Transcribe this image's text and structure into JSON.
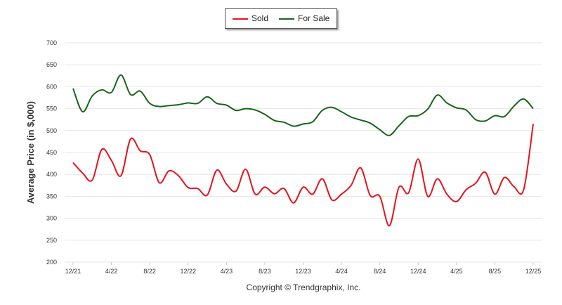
{
  "legend": {
    "sold_label": "Sold",
    "for_sale_label": "For Sale"
  },
  "colors": {
    "sold": "#e4141b",
    "for_sale": "#19661a",
    "grid": "#e6e6e6"
  },
  "caption": "Copyright © Trendgraphix, Inc.",
  "chart_data": {
    "type": "line",
    "title": "",
    "xlabel": "",
    "ylabel": "Average Price (in $,000)",
    "ylim": [
      200,
      700
    ],
    "yticks": [
      200,
      250,
      300,
      350,
      400,
      450,
      500,
      550,
      600,
      650,
      700
    ],
    "grid": true,
    "legend_position": "top-center",
    "x_tick_labels": [
      "12/21",
      "4/22",
      "8/22",
      "12/22",
      "4/23",
      "8/23",
      "12/23",
      "4/24",
      "8/24",
      "12/24",
      "4/25",
      "8/25",
      "12/25"
    ],
    "x_tick_index": [
      0,
      4,
      8,
      12,
      16,
      20,
      24,
      28,
      32,
      36,
      40,
      44,
      48
    ],
    "months": [
      "12/21",
      "1/22",
      "2/22",
      "3/22",
      "4/22",
      "5/22",
      "6/22",
      "7/22",
      "8/22",
      "9/22",
      "10/22",
      "11/22",
      "12/22",
      "1/23",
      "2/23",
      "3/23",
      "4/23",
      "5/23",
      "6/23",
      "7/23",
      "8/23",
      "9/23",
      "10/23",
      "11/23",
      "12/23",
      "1/24",
      "2/24",
      "3/24",
      "4/24",
      "5/24",
      "6/24",
      "7/24",
      "8/24",
      "9/24",
      "10/24",
      "11/24",
      "12/24",
      "1/25",
      "2/25",
      "3/25",
      "4/25",
      "5/25",
      "6/25",
      "7/25",
      "8/25",
      "9/25",
      "10/25",
      "11/25",
      "12/25"
    ],
    "series": [
      {
        "name": "Sold",
        "values": [
          427,
          403,
          387,
          457,
          432,
          397,
          481,
          454,
          445,
          381,
          408,
          397,
          370,
          368,
          353,
          410,
          378,
          362,
          412,
          355,
          371,
          356,
          368,
          335,
          371,
          355,
          390,
          342,
          355,
          375,
          415,
          352,
          350,
          283,
          371,
          358,
          435,
          350,
          390,
          355,
          338,
          365,
          380,
          405,
          355,
          393,
          372,
          365,
          515
        ]
      },
      {
        "name": "For Sale",
        "values": [
          596,
          543,
          579,
          593,
          587,
          627,
          582,
          590,
          562,
          555,
          557,
          559,
          563,
          562,
          577,
          562,
          558,
          546,
          550,
          547,
          537,
          523,
          519,
          510,
          515,
          520,
          546,
          553,
          543,
          531,
          524,
          517,
          502,
          489,
          511,
          532,
          534,
          549,
          581,
          563,
          552,
          547,
          525,
          522,
          534,
          532,
          556,
          572,
          550
        ]
      }
    ]
  }
}
